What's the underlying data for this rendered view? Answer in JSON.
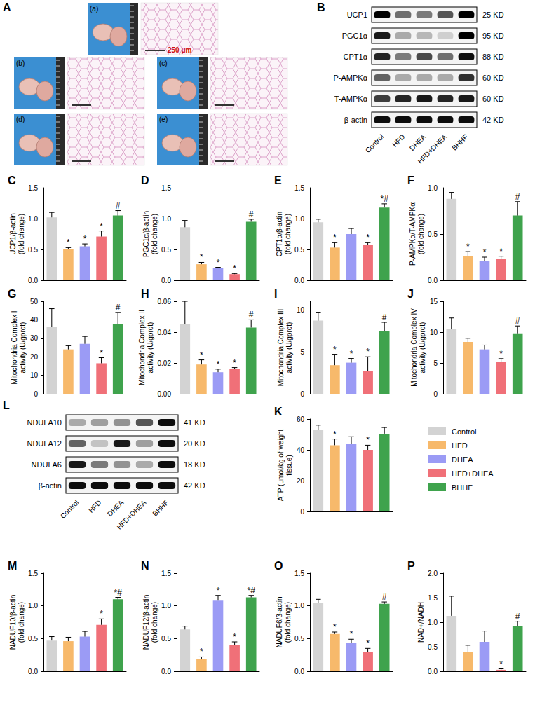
{
  "chart_data": [
    {
      "type": "bar",
      "title": "C",
      "ylabel": "UCP1/β-actin (fold change)",
      "categories": [
        "Control",
        "HFD",
        "DHEA",
        "HFD+DHEA",
        "BHHF"
      ],
      "values": [
        1.02,
        0.5,
        0.55,
        0.71,
        1.05
      ],
      "errors": [
        0.08,
        0.03,
        0.04,
        0.09,
        0.08
      ],
      "annotations": [
        null,
        "*",
        "*",
        "*",
        "#"
      ],
      "colors": [
        "#d3d3d3",
        "#f7b96b",
        "#9b9bf5",
        "#f07078",
        "#3fa34d"
      ],
      "ylim": [
        0,
        1.5
      ],
      "yticks": [
        {
          "value": 0,
          "label": "0.0"
        },
        0.5,
        {
          "value": 1,
          "label": "1.0"
        },
        1.5
      ],
      "grid": false,
      "tick_labels": "y"
    },
    {
      "type": "bar",
      "title": "D",
      "ylabel": "PGC1α/β-actin (fold change)",
      "categories": [
        "Control",
        "HFD",
        "DHEA",
        "HFD+DHEA",
        "BHHF"
      ],
      "values": [
        0.86,
        0.26,
        0.2,
        0.1,
        0.95
      ],
      "errors": [
        0.11,
        0.03,
        0.01,
        0.01,
        0.04
      ],
      "annotations": [
        null,
        "*",
        "*",
        "*",
        "#"
      ],
      "colors": [
        "#d3d3d3",
        "#f7b96b",
        "#9b9bf5",
        "#f07078",
        "#3fa34d"
      ],
      "ylim": [
        0,
        1.5
      ],
      "yticks": [
        {
          "value": 0,
          "label": "0.0"
        },
        0.5,
        {
          "value": 1,
          "label": "1.0"
        },
        1.5
      ],
      "grid": false,
      "tick_labels": "y"
    },
    {
      "type": "bar",
      "title": "E",
      "ylabel": "CPT1α/β-actin (fold change)",
      "categories": [
        "Control",
        "HFD",
        "DHEA",
        "HFD+DHEA",
        "BHHF"
      ],
      "values": [
        0.94,
        0.53,
        0.75,
        0.57,
        1.18
      ],
      "errors": [
        0.05,
        0.08,
        0.09,
        0.04,
        0.06
      ],
      "annotations": [
        null,
        "*",
        null,
        "*",
        "*#"
      ],
      "colors": [
        "#d3d3d3",
        "#f7b96b",
        "#9b9bf5",
        "#f07078",
        "#3fa34d"
      ],
      "ylim": [
        0,
        1.5
      ],
      "yticks": [
        {
          "value": 0,
          "label": "0.0"
        },
        0.5,
        {
          "value": 1,
          "label": "1.0"
        },
        1.5
      ],
      "grid": false,
      "tick_labels": "y"
    },
    {
      "type": "bar",
      "title": "F",
      "ylabel": "P-AMPKα/T-AMPKα (fold change)",
      "categories": [
        "Control",
        "HFD",
        "DHEA",
        "HFD+DHEA",
        "BHHF"
      ],
      "values": [
        0.88,
        0.26,
        0.21,
        0.23,
        0.7
      ],
      "errors": [
        0.07,
        0.05,
        0.04,
        0.03,
        0.15
      ],
      "annotations": [
        null,
        "*",
        "*",
        "*",
        "#"
      ],
      "colors": [
        "#d3d3d3",
        "#f7b96b",
        "#9b9bf5",
        "#f07078",
        "#3fa34d"
      ],
      "ylim": [
        0,
        1
      ],
      "yticks": [
        {
          "value": 0,
          "label": "0.0"
        },
        0.5,
        {
          "value": 1,
          "label": "1.0"
        }
      ],
      "grid": false,
      "tick_labels": "y"
    },
    {
      "type": "bar",
      "title": "G",
      "ylabel": "Mitochondria Complex I activity (U/gprot)",
      "categories": [
        "Control",
        "HFD",
        "DHEA",
        "HFD+DHEA",
        "BHHF"
      ],
      "values": [
        36,
        24,
        27,
        16.5,
        37.5
      ],
      "errors": [
        10,
        2,
        4,
        3,
        6.5
      ],
      "annotations": [
        null,
        null,
        null,
        "*",
        "#"
      ],
      "colors": [
        "#d3d3d3",
        "#f7b96b",
        "#9b9bf5",
        "#f07078",
        "#3fa34d"
      ],
      "ylim": [
        0,
        50
      ],
      "yticks": [
        0,
        10,
        20,
        30,
        40,
        50
      ],
      "grid": false,
      "tick_labels": "y"
    },
    {
      "type": "bar",
      "title": "H",
      "ylabel": "Mitochondria Complex II activity (U/gprot)",
      "categories": [
        "Control",
        "HFD",
        "DHEA",
        "HFD+DHEA",
        "BHHF"
      ],
      "values": [
        0.045,
        0.019,
        0.014,
        0.016,
        0.043
      ],
      "errors": [
        0.015,
        0.003,
        0.002,
        0.001,
        0.005
      ],
      "annotations": [
        null,
        "*",
        "*",
        "*",
        "#"
      ],
      "colors": [
        "#d3d3d3",
        "#f7b96b",
        "#9b9bf5",
        "#f07078",
        "#3fa34d"
      ],
      "ylim": [
        0,
        0.06
      ],
      "yticks": [
        {
          "value": 0,
          "label": "0.00"
        },
        0.02,
        0.04,
        0.06
      ],
      "grid": false,
      "tick_labels": "y"
    },
    {
      "type": "bar",
      "title": "I",
      "ylabel": "Mitochondria Complex III activity (U/gprot)",
      "categories": [
        "Control",
        "HFD",
        "DHEA",
        "HFD+DHEA",
        "BHHF"
      ],
      "values": [
        8.7,
        3.4,
        3.7,
        2.7,
        7.5
      ],
      "errors": [
        1.0,
        1.3,
        0.5,
        1.7,
        1.0
      ],
      "annotations": [
        null,
        "*",
        "*",
        "*",
        "#"
      ],
      "colors": [
        "#d3d3d3",
        "#f7b96b",
        "#9b9bf5",
        "#f07078",
        "#3fa34d"
      ],
      "ylim": [
        0,
        11
      ],
      "yticks": [
        0,
        5,
        10
      ],
      "grid": false,
      "tick_labels": "y"
    },
    {
      "type": "bar",
      "title": "J",
      "ylabel": "Mitochondria Complex IV activity (U/gprot)",
      "categories": [
        "Control",
        "HFD",
        "DHEA",
        "HFD+DHEA",
        "BHHF"
      ],
      "values": [
        10.5,
        8.4,
        7.2,
        5.2,
        9.8
      ],
      "errors": [
        1.8,
        0.6,
        0.7,
        0.5,
        1.2
      ],
      "annotations": [
        null,
        null,
        null,
        "*",
        "#"
      ],
      "colors": [
        "#d3d3d3",
        "#f7b96b",
        "#9b9bf5",
        "#f07078",
        "#3fa34d"
      ],
      "ylim": [
        0,
        15
      ],
      "yticks": [
        0,
        5,
        10,
        15
      ],
      "grid": false,
      "tick_labels": "y"
    },
    {
      "type": "bar",
      "title": "K",
      "ylabel": "ATP (μmol/kg of weight tissue)",
      "categories": [
        "Control",
        "HFD",
        "DHEA",
        "HFD+DHEA",
        "BHHF"
      ],
      "values": [
        53,
        43,
        44,
        40,
        50.5
      ],
      "errors": [
        3,
        4,
        4.5,
        3,
        4
      ],
      "annotations": [
        null,
        "*",
        null,
        "*",
        null
      ],
      "colors": [
        "#d3d3d3",
        "#f7b96b",
        "#9b9bf5",
        "#f07078",
        "#3fa34d"
      ],
      "ylim": [
        0,
        60
      ],
      "yticks": [
        0,
        20,
        40,
        60
      ],
      "grid": false,
      "tick_labels": "y"
    },
    {
      "type": "bar",
      "title": "M",
      "ylabel": "NADUF10/β-actin (fold change)",
      "categories": [
        "Control",
        "HFD",
        "DHEA",
        "HFD+DHEA",
        "BHHF"
      ],
      "values": [
        0.47,
        0.46,
        0.53,
        0.71,
        1.1
      ],
      "errors": [
        0.06,
        0.06,
        0.08,
        0.09,
        0.03
      ],
      "annotations": [
        null,
        null,
        null,
        "*",
        "*#"
      ],
      "colors": [
        "#d3d3d3",
        "#f7b96b",
        "#9b9bf5",
        "#f07078",
        "#3fa34d"
      ],
      "ylim": [
        0,
        1.5
      ],
      "yticks": [
        {
          "value": 0,
          "label": "0.0"
        },
        0.5,
        {
          "value": 1,
          "label": "1.0"
        },
        1.5
      ],
      "grid": false,
      "tick_labels": "y"
    },
    {
      "type": "bar",
      "title": "N",
      "ylabel": "NADUF12/β-actin (fold change)",
      "categories": [
        "Control",
        "HFD",
        "DHEA",
        "HFD+DHEA",
        "BHHF"
      ],
      "values": [
        0.64,
        0.19,
        1.08,
        0.4,
        1.13
      ],
      "errors": [
        0.05,
        0.03,
        0.08,
        0.05,
        0.03
      ],
      "annotations": [
        null,
        "*",
        "*",
        "*",
        "*#"
      ],
      "colors": [
        "#d3d3d3",
        "#f7b96b",
        "#9b9bf5",
        "#f07078",
        "#3fa34d"
      ],
      "ylim": [
        0,
        1.5
      ],
      "yticks": [
        {
          "value": 0,
          "label": "0.0"
        },
        0.5,
        {
          "value": 1,
          "label": "1.0"
        },
        1.5
      ],
      "grid": false,
      "tick_labels": "y"
    },
    {
      "type": "bar",
      "title": "O",
      "ylabel": "NADUF6/β-actin (fold change)",
      "categories": [
        "Control",
        "HFD",
        "DHEA",
        "HFD+DHEA",
        "BHHF"
      ],
      "values": [
        1.04,
        0.57,
        0.43,
        0.3,
        1.03
      ],
      "errors": [
        0.06,
        0.03,
        0.06,
        0.05,
        0.03
      ],
      "annotations": [
        null,
        "*",
        "*",
        "*",
        "#"
      ],
      "colors": [
        "#d3d3d3",
        "#f7b96b",
        "#9b9bf5",
        "#f07078",
        "#3fa34d"
      ],
      "ylim": [
        0,
        1.5
      ],
      "yticks": [
        {
          "value": 0,
          "label": "0.0"
        },
        0.5,
        {
          "value": 1,
          "label": "1.0"
        },
        1.5
      ],
      "grid": false,
      "tick_labels": "y"
    },
    {
      "type": "bar",
      "title": "P",
      "ylabel": "NAD+/NADH",
      "categories": [
        "Control",
        "HFD",
        "DHEA",
        "HFD+DHEA",
        "BHHF"
      ],
      "values": [
        1.13,
        0.39,
        0.6,
        0.03,
        0.92
      ],
      "errors": [
        0.4,
        0.14,
        0.22,
        0.02,
        0.1
      ],
      "annotations": [
        null,
        null,
        null,
        "*",
        "#"
      ],
      "colors": [
        "#d3d3d3",
        "#f7b96b",
        "#9b9bf5",
        "#f07078",
        "#3fa34d"
      ],
      "ylim": [
        0,
        2
      ],
      "yticks": [
        {
          "value": 0,
          "label": "0.0"
        },
        0.5,
        {
          "value": 1,
          "label": "1.0"
        },
        1.5,
        {
          "value": 2,
          "label": "2.0"
        }
      ],
      "grid": false,
      "tick_labels": "y"
    }
  ],
  "panel_a": {
    "title": "A",
    "scale_bar": "250 μm",
    "images": [
      "(a)",
      "(b)",
      "(c)",
      "(d)",
      "(e)"
    ]
  },
  "blots": [
    {
      "title": "B",
      "lanes": [
        "Control",
        "HFD",
        "DHEA",
        "HFD+DHEA",
        "BHHF"
      ],
      "rows": [
        {
          "protein": "UCP1",
          "size": "25 KD",
          "bands": [
            1.0,
            0.55,
            0.5,
            0.65,
            1.0
          ]
        },
        {
          "protein": "PGC1α",
          "size": "95 KD",
          "bands": [
            0.9,
            0.3,
            0.25,
            0.15,
            1.0
          ]
        },
        {
          "protein": "CPT1α",
          "size": "88 KD",
          "bands": [
            0.85,
            0.5,
            0.7,
            0.55,
            0.95
          ]
        },
        {
          "protein": "P-AMPKα",
          "size": "60 KD",
          "bands": [
            0.6,
            0.3,
            0.3,
            0.3,
            0.8
          ]
        },
        {
          "protein": "T-AMPKα",
          "size": "60 KD",
          "bands": [
            0.75,
            0.85,
            0.9,
            0.85,
            0.9
          ]
        },
        {
          "protein": "β-actin",
          "size": "42 KD",
          "bands": [
            0.95,
            0.95,
            0.95,
            0.95,
            0.95
          ]
        }
      ]
    },
    {
      "title": "L",
      "lanes": [
        "Control",
        "HFD",
        "DHEA",
        "HFD+DHEA",
        "BHHF"
      ],
      "rows": [
        {
          "protein": "NDUFA10",
          "size": "41 KD",
          "bands": [
            0.3,
            0.35,
            0.4,
            0.65,
            0.95
          ]
        },
        {
          "protein": "NDUFA12",
          "size": "20 KD",
          "bands": [
            0.6,
            0.2,
            0.9,
            0.35,
            0.95
          ]
        },
        {
          "protein": "NDUFA6",
          "size": "18 KD",
          "bands": [
            0.9,
            0.5,
            0.4,
            0.3,
            0.95
          ]
        },
        {
          "protein": "β-actin",
          "size": "42 KD",
          "bands": [
            0.95,
            0.95,
            0.95,
            0.95,
            0.95
          ]
        }
      ]
    }
  ],
  "legend_items": [
    {
      "name": "Control",
      "color": "#d3d3d3"
    },
    {
      "name": "HFD",
      "color": "#f7b96b"
    },
    {
      "name": "DHEA",
      "color": "#9b9bf5"
    },
    {
      "name": "HFD+DHEA",
      "color": "#f07078"
    },
    {
      "name": "BHHF",
      "color": "#3fa34d"
    }
  ]
}
